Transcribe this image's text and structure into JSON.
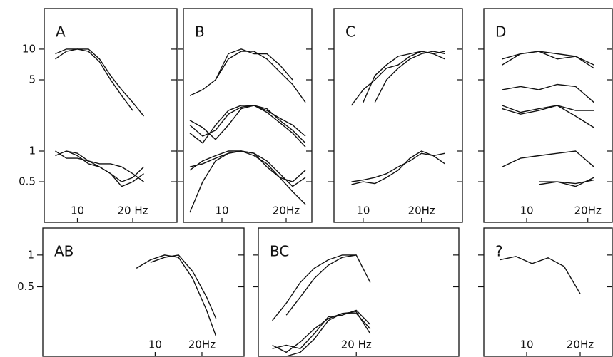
{
  "chart_data": [
    {
      "type": "line",
      "title": "A",
      "log_y": true,
      "color": "#111111",
      "show_ytick_labels": true,
      "xlim": [
        4,
        28
      ],
      "xticks": [
        10,
        {
          "value": 20,
          "label": "20 Hz"
        }
      ],
      "ylim": [
        0.2,
        25
      ],
      "yticks": [
        0.5,
        1,
        5,
        10
      ],
      "x": [
        6,
        8,
        10,
        12,
        14,
        16,
        18,
        20,
        22
      ],
      "series": [
        {
          "values": [
            8,
            9.5,
            10,
            10,
            8,
            5.5,
            4,
            3,
            2.2
          ]
        },
        {
          "values": [
            9,
            10,
            10,
            9.5,
            7.5,
            5,
            3.5,
            2.5,
            null
          ]
        },
        {
          "values": [
            1,
            0.85,
            0.85,
            0.8,
            0.7,
            0.6,
            0.5,
            0.55,
            0.7
          ]
        },
        {
          "values": [
            null,
            1,
            0.95,
            0.8,
            0.75,
            0.75,
            0.7,
            0.6,
            0.5
          ]
        },
        {
          "values": [
            0.9,
            1,
            0.9,
            0.75,
            0.7,
            0.6,
            0.45,
            0.5,
            0.6
          ]
        }
      ]
    },
    {
      "type": "line",
      "title": "B",
      "log_y": true,
      "color": "#111111",
      "show_ytick_labels": false,
      "xlim": [
        4,
        24
      ],
      "xticks": [
        10,
        {
          "value": 20,
          "label": "20Hz"
        }
      ],
      "ylim": [
        0.2,
        25
      ],
      "yticks": [
        0.5,
        1,
        5,
        10
      ],
      "x": [
        5,
        7,
        9,
        11,
        13,
        15,
        17,
        19,
        21,
        23
      ],
      "series": [
        {
          "values": [
            3.5,
            4,
            5,
            8,
            9.5,
            9.5,
            8,
            6,
            4.5,
            3
          ]
        },
        {
          "values": [
            null,
            null,
            5,
            9,
            10,
            9,
            9,
            7,
            5,
            null
          ]
        },
        {
          "values": [
            1.8,
            1.4,
            1.6,
            2.3,
            2.7,
            2.8,
            2.6,
            2,
            1.6,
            1.2
          ]
        },
        {
          "values": [
            1.5,
            1.2,
            1.8,
            2.5,
            2.8,
            2.8,
            2.5,
            2.1,
            1.8,
            1.4
          ]
        },
        {
          "values": [
            2,
            1.7,
            1.3,
            1.8,
            2.6,
            2.8,
            2.4,
            1.9,
            1.5,
            1.1
          ]
        },
        {
          "values": [
            0.25,
            0.5,
            0.8,
            0.95,
            1,
            0.9,
            0.75,
            0.55,
            0.4,
            0.3
          ]
        },
        {
          "values": [
            0.65,
            0.8,
            0.9,
            1,
            1,
            0.95,
            0.8,
            0.6,
            0.45,
            0.55
          ]
        },
        {
          "values": [
            0.7,
            0.75,
            0.85,
            0.95,
            1,
            0.95,
            0.7,
            0.55,
            0.5,
            0.65
          ]
        }
      ]
    },
    {
      "type": "line",
      "title": "C",
      "log_y": true,
      "color": "#111111",
      "show_ytick_labels": false,
      "xlim": [
        5,
        27
      ],
      "xticks": [
        10,
        {
          "value": 20,
          "label": "20Hz"
        }
      ],
      "ylim": [
        0.2,
        25
      ],
      "yticks": [
        0.5,
        1,
        5,
        10
      ],
      "x": [
        8,
        10,
        12,
        14,
        16,
        18,
        20,
        22,
        24
      ],
      "series": [
        {
          "values": [
            2.8,
            4,
            5,
            6.5,
            7,
            8.5,
            9.5,
            9,
            9.5
          ]
        },
        {
          "values": [
            null,
            3,
            5.5,
            7,
            8.5,
            9,
            9.5,
            9,
            8
          ]
        },
        {
          "values": [
            null,
            null,
            3,
            5,
            6.5,
            8,
            9,
            9.5,
            9
          ]
        },
        {
          "values": [
            0.5,
            0.52,
            0.55,
            0.6,
            0.7,
            0.8,
            0.95,
            0.9,
            0.75
          ]
        },
        {
          "values": [
            0.47,
            0.5,
            0.48,
            0.55,
            0.65,
            0.85,
            1,
            0.9,
            0.95
          ]
        }
      ]
    },
    {
      "type": "line",
      "title": "D",
      "log_y": true,
      "color": "#111111",
      "show_ytick_labels": false,
      "xlim": [
        3,
        24
      ],
      "xticks": [
        10,
        {
          "value": 20,
          "label": "20Hz"
        }
      ],
      "ylim": [
        0.2,
        25
      ],
      "yticks": [
        0.5,
        1,
        5,
        10
      ],
      "x": [
        6,
        9,
        12,
        15,
        18,
        21
      ],
      "series": [
        {
          "values": [
            8,
            9,
            9.5,
            9,
            8.5,
            7
          ]
        },
        {
          "values": [
            7,
            9,
            9.5,
            8,
            8.5,
            6.5
          ]
        },
        {
          "values": [
            4,
            4.3,
            4,
            4.5,
            4.3,
            3
          ]
        },
        {
          "values": [
            2.8,
            2.4,
            2.6,
            2.8,
            2.5,
            2.5
          ]
        },
        {
          "values": [
            2.6,
            2.3,
            2.5,
            2.8,
            2.2,
            1.7
          ]
        },
        {
          "values": [
            0.7,
            0.85,
            0.9,
            0.95,
            1,
            0.7
          ]
        },
        {
          "values": [
            null,
            null,
            0.5,
            0.5,
            0.45,
            0.55
          ]
        },
        {
          "values": [
            null,
            null,
            0.47,
            0.5,
            0.48,
            0.52
          ]
        }
      ]
    },
    {
      "type": "line",
      "title": "AB",
      "log_y": true,
      "color": "#111111",
      "show_ytick_labels": true,
      "xlim": [
        -14,
        29
      ],
      "xticks": [
        10,
        {
          "value": 20,
          "label": "20Hz"
        }
      ],
      "ylim": [
        0.11,
        1.8
      ],
      "yticks": [
        0.5,
        1
      ],
      "x": [
        6,
        9,
        12,
        15,
        18,
        21,
        23
      ],
      "series": [
        {
          "values": [
            0.75,
            0.9,
            1,
            0.95,
            0.6,
            0.3,
            0.17
          ]
        },
        {
          "values": [
            null,
            0.85,
            0.95,
            1,
            0.7,
            0.4,
            0.25
          ]
        }
      ]
    },
    {
      "type": "line",
      "title": "BC",
      "log_y": true,
      "color": "#111111",
      "show_ytick_labels": false,
      "xlim": [
        -1,
        42
      ],
      "xticks": [
        {
          "value": 20,
          "label": "20 Hz"
        }
      ],
      "ylim": [
        0.11,
        1.8
      ],
      "yticks": [
        0.5,
        1
      ],
      "x": [
        2,
        5,
        8,
        11,
        14,
        17,
        20,
        23
      ],
      "series": [
        {
          "values": [
            0.24,
            0.35,
            0.55,
            0.75,
            0.9,
            1,
            1,
            0.55
          ]
        },
        {
          "values": [
            null,
            0.27,
            0.4,
            0.6,
            0.8,
            0.95,
            1,
            null
          ]
        },
        {
          "values": [
            0.14,
            0.12,
            0.15,
            0.2,
            0.25,
            0.28,
            0.28,
            0.2
          ]
        },
        {
          "values": [
            0.13,
            0.14,
            0.13,
            0.18,
            0.26,
            0.27,
            0.3,
            0.22
          ]
        },
        {
          "values": [
            null,
            0.11,
            0.12,
            0.16,
            0.24,
            0.28,
            0.29,
            0.18
          ]
        }
      ]
    },
    {
      "type": "line",
      "title": "?",
      "log_y": true,
      "color": "#111111",
      "show_ytick_labels": false,
      "xlim": [
        2,
        26
      ],
      "xticks": [
        10,
        {
          "value": 20,
          "label": "20Hz"
        }
      ],
      "ylim": [
        0.11,
        1.8
      ],
      "yticks": [
        0.5,
        1
      ],
      "x": [
        5,
        8,
        11,
        14,
        17,
        20
      ],
      "series": [
        {
          "values": [
            0.9,
            0.97,
            0.83,
            0.94,
            0.78,
            0.43
          ]
        }
      ]
    }
  ]
}
